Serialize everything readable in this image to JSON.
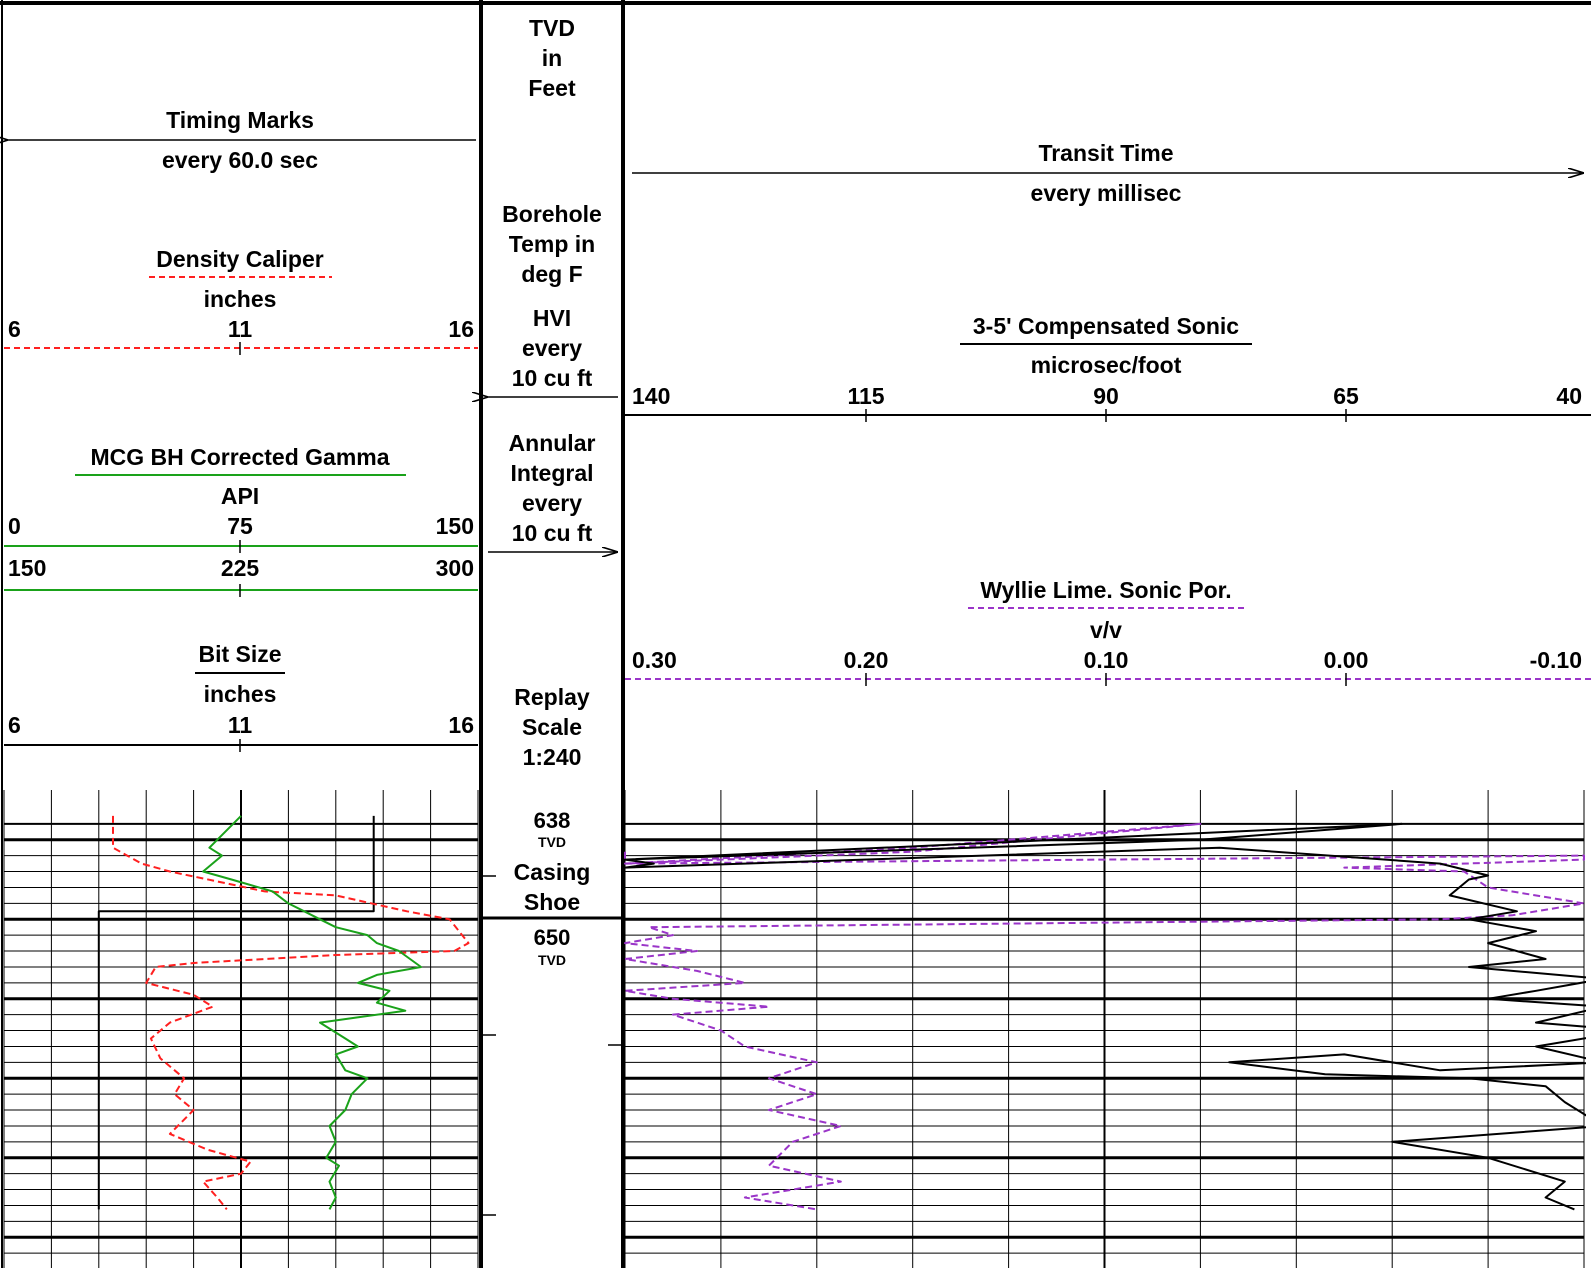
{
  "colors": {
    "density_caliper": "#ff2020",
    "gamma": "#1aa21a",
    "sonic": "#000000",
    "porosity": "#9a35c8",
    "grid": "#000000"
  },
  "header": {
    "left": {
      "timing_marks": {
        "title": "Timing Marks",
        "subtitle": "every 60.0 sec"
      },
      "density_caliper": {
        "title": "Density Caliper",
        "unit": "inches",
        "scale": [
          "6",
          "11",
          "16"
        ]
      },
      "gamma": {
        "title": "MCG BH Corrected Gamma",
        "unit": "API",
        "scale": [
          "0",
          "75",
          "150"
        ],
        "scale_backup": [
          "150",
          "225",
          "300"
        ]
      },
      "bit_size": {
        "title": "Bit Size",
        "unit": "inches",
        "scale": [
          "6",
          "11",
          "16"
        ]
      }
    },
    "depth": {
      "tvd": [
        "TVD",
        "in",
        "Feet"
      ],
      "temp": [
        "Borehole",
        "Temp in",
        "deg F"
      ],
      "hvi": [
        "HVI",
        "every",
        "10 cu ft"
      ],
      "annular": [
        "Annular",
        "Integral",
        "every",
        "10 cu ft"
      ],
      "replay": [
        "Replay",
        "Scale",
        "1:240"
      ]
    },
    "right": {
      "transit_time": {
        "title": "Transit Time",
        "subtitle": "every millisec"
      },
      "sonic": {
        "title": "3-5' Compensated Sonic",
        "unit": "microsec/foot",
        "scale": [
          "140",
          "115",
          "90",
          "65",
          "40"
        ]
      },
      "porosity": {
        "title": "Wyllie Lime. Sonic Por.",
        "unit": "v/v",
        "scale": [
          "0.30",
          "0.20",
          "0.10",
          "0.00",
          "-0.10"
        ]
      }
    }
  },
  "depth_labels": [
    {
      "value": "638",
      "sub": "TVD"
    },
    {
      "value": "650",
      "sub": "TVD"
    }
  ],
  "casing_label": [
    "Casing",
    "Shoe"
  ],
  "chart_data": {
    "type": "line",
    "depth_axis": {
      "unit": "ft TVD"
    },
    "tracks": [
      {
        "name": "track-1",
        "series": [
          {
            "name": "Density Caliper",
            "unit": "inches",
            "range": [
              6,
              16
            ],
            "style": "dashed",
            "points": [
              [
                8.3,
                637
              ],
              [
                8.3,
                641
              ],
              [
                8.6,
                642
              ],
              [
                8.9,
                643
              ],
              [
                9.5,
                644
              ],
              [
                11.5,
                646.5
              ],
              [
                13,
                647
              ],
              [
                14.5,
                649
              ],
              [
                15.4,
                650
              ],
              [
                15.6,
                651.5
              ],
              [
                15.8,
                653
              ],
              [
                15.5,
                654
              ],
              [
                13,
                654.5
              ],
              [
                10,
                655.5
              ],
              [
                9.2,
                656
              ],
              [
                9,
                658
              ],
              [
                10,
                659.5
              ],
              [
                10.4,
                661
              ],
              [
                9.5,
                663
              ],
              [
                9.1,
                665
              ],
              [
                9.3,
                667.5
              ],
              [
                9.8,
                670
              ],
              [
                9.6,
                672
              ],
              [
                10,
                674
              ],
              [
                9.5,
                677
              ],
              [
                10.3,
                679
              ],
              [
                11.2,
                680.5
              ],
              [
                11,
                682
              ],
              [
                10.2,
                683
              ],
              [
                10.5,
                685
              ],
              [
                10.7,
                686.5
              ]
            ]
          },
          {
            "name": "MCG BH Corrected Gamma",
            "unit": "API",
            "range": [
              0,
              150
            ],
            "style": "solid",
            "points": [
              [
                75,
                637
              ],
              [
                70,
                639
              ],
              [
                65,
                641
              ],
              [
                69,
                642
              ],
              [
                63,
                644
              ],
              [
                72,
                645
              ],
              [
                85,
                646.5
              ],
              [
                90,
                648
              ],
              [
                95,
                649
              ],
              [
                100,
                650
              ],
              [
                105,
                651
              ],
              [
                115,
                652
              ],
              [
                118,
                653
              ],
              [
                125,
                654
              ],
              [
                132,
                656
              ],
              [
                118,
                657
              ],
              [
                112,
                658
              ],
              [
                122,
                659
              ],
              [
                118,
                660.5
              ],
              [
                127,
                661.5
              ],
              [
                100,
                663
              ],
              [
                108,
                665
              ],
              [
                112,
                666
              ],
              [
                105,
                667
              ],
              [
                108,
                669
              ],
              [
                115,
                670
              ],
              [
                110,
                672
              ],
              [
                108,
                674
              ],
              [
                103,
                676
              ],
              [
                105,
                678
              ],
              [
                102,
                680
              ],
              [
                106,
                681
              ],
              [
                103,
                683
              ],
              [
                105,
                685
              ],
              [
                103,
                686.5
              ]
            ]
          },
          {
            "name": "Bit Size",
            "unit": "inches",
            "range": [
              6,
              16
            ],
            "style": "solid",
            "points": [
              [
                8,
                686.5
              ],
              [
                8,
                649
              ],
              [
                13.8,
                649
              ],
              [
                13.8,
                637
              ]
            ]
          }
        ]
      },
      {
        "name": "track-2",
        "series": [
          {
            "name": "3-5' Compensated Sonic",
            "unit": "microsec/foot",
            "range": [
              140,
              40
            ],
            "style": "solid",
            "points": [
              [
                140,
                642.5
              ],
              [
                80,
                640
              ],
              [
                59,
                638
              ],
              [
                140,
                642.5
              ],
              [
                137,
                643
              ],
              [
                140,
                643.5
              ],
              [
                78,
                641
              ],
              [
                55,
                643
              ],
              [
                50,
                644.5
              ],
              [
                52,
                645
              ],
              [
                54,
                647
              ],
              [
                47,
                649
              ],
              [
                52,
                650
              ],
              [
                45,
                651.5
              ],
              [
                50,
                653
              ],
              [
                44,
                655
              ],
              [
                52,
                656
              ],
              [
                38,
                657.5
              ],
              [
                45,
                659
              ],
              [
                50,
                660
              ],
              [
                38,
                661
              ],
              [
                45,
                663
              ],
              [
                35,
                664
              ],
              [
                45,
                666
              ],
              [
                38,
                668
              ],
              [
                55,
                669
              ],
              [
                65,
                667
              ],
              [
                77,
                668
              ],
              [
                67,
                669.5
              ],
              [
                52,
                670
              ],
              [
                44,
                671
              ],
              [
                42,
                673
              ],
              [
                38,
                676
              ],
              [
                60,
                678
              ],
              [
                50,
                680
              ],
              [
                42,
                683
              ],
              [
                44,
                685
              ],
              [
                41,
                686.5
              ]
            ]
          },
          {
            "name": "Wyllie Lime. Sonic Por.",
            "unit": "v/v",
            "range": [
              0.3,
              -0.1
            ],
            "style": "dashed",
            "points": [
              [
                0.3,
                641.5
              ],
              [
                0.3,
                643
              ],
              [
                0.18,
                641
              ],
              [
                0.06,
                638
              ],
              [
                0.18,
                641.5
              ],
              [
                0.3,
                643
              ],
              [
                -0.1,
                642
              ],
              [
                -0.1,
                642.5
              ],
              [
                0.0,
                643.5
              ],
              [
                -0.05,
                644
              ],
              [
                -0.06,
                646
              ],
              [
                -0.1,
                648
              ],
              [
                -0.07,
                649.5
              ],
              [
                -0.04,
                650
              ],
              [
                0.29,
                651
              ],
              [
                0.28,
                652
              ],
              [
                0.3,
                653
              ],
              [
                0.27,
                654
              ],
              [
                0.3,
                655
              ],
              [
                0.27,
                656.5
              ],
              [
                0.25,
                658
              ],
              [
                0.3,
                659
              ],
              [
                0.28,
                660
              ],
              [
                0.24,
                661
              ],
              [
                0.28,
                662
              ],
              [
                0.26,
                664
              ],
              [
                0.25,
                666
              ],
              [
                0.22,
                668
              ],
              [
                0.24,
                670
              ],
              [
                0.22,
                672
              ],
              [
                0.24,
                674
              ],
              [
                0.21,
                676
              ],
              [
                0.23,
                678
              ],
              [
                0.24,
                681
              ],
              [
                0.21,
                683
              ],
              [
                0.25,
                685
              ],
              [
                0.22,
                686.5
              ]
            ]
          }
        ]
      }
    ]
  }
}
